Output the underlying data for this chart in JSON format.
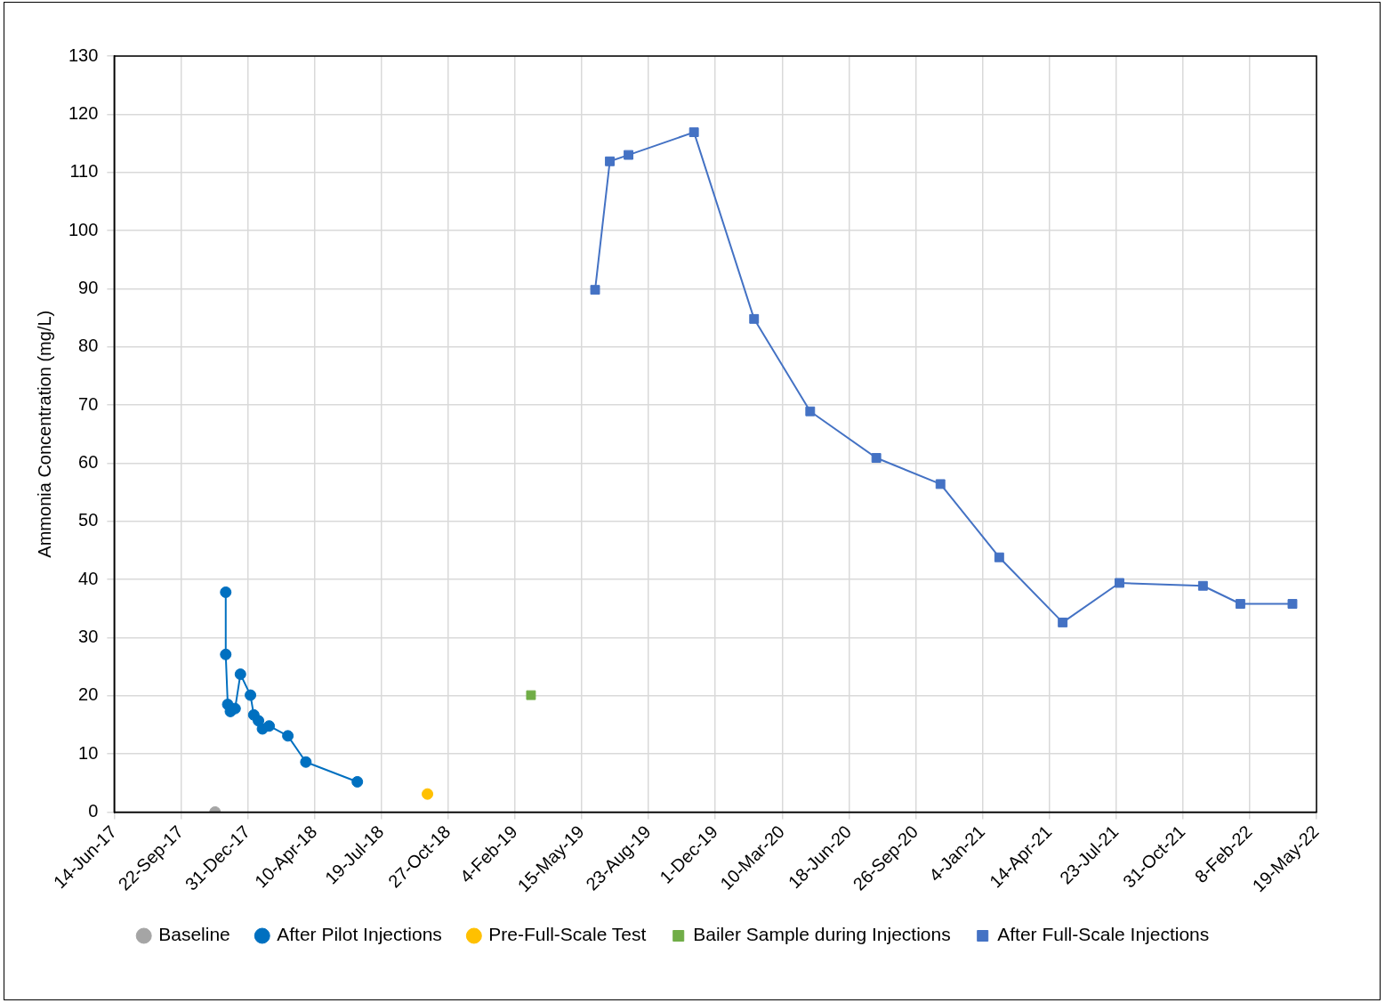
{
  "chart_data": {
    "type": "line",
    "ylabel": "Ammonia Concentration (mg/L)",
    "ylim": [
      0,
      130
    ],
    "yticks": [
      0,
      10,
      20,
      30,
      40,
      50,
      60,
      70,
      80,
      90,
      100,
      110,
      120,
      130
    ],
    "xlim": [
      "2017-06-14",
      "2022-05-19"
    ],
    "xticks": [
      {
        "value": "2017-06-14",
        "label": "14-Jun-17"
      },
      {
        "value": "2017-09-22",
        "label": "22-Sep-17"
      },
      {
        "value": "2017-12-31",
        "label": "31-Dec-17"
      },
      {
        "value": "2018-04-10",
        "label": "10-Apr-18"
      },
      {
        "value": "2018-07-19",
        "label": "19-Jul-18"
      },
      {
        "value": "2018-10-27",
        "label": "27-Oct-18"
      },
      {
        "value": "2019-02-04",
        "label": "4-Feb-19"
      },
      {
        "value": "2019-05-15",
        "label": "15-May-19"
      },
      {
        "value": "2019-08-23",
        "label": "23-Aug-19"
      },
      {
        "value": "2019-12-01",
        "label": "1-Dec-19"
      },
      {
        "value": "2020-03-10",
        "label": "10-Mar-20"
      },
      {
        "value": "2020-06-18",
        "label": "18-Jun-20"
      },
      {
        "value": "2020-09-26",
        "label": "26-Sep-20"
      },
      {
        "value": "2021-01-04",
        "label": "4-Jan-21"
      },
      {
        "value": "2021-04-14",
        "label": "14-Apr-21"
      },
      {
        "value": "2021-07-23",
        "label": "23-Jul-21"
      },
      {
        "value": "2021-10-31",
        "label": "31-Oct-21"
      },
      {
        "value": "2022-02-08",
        "label": "8-Feb-22"
      },
      {
        "value": "2022-05-19",
        "label": "19-May-22"
      }
    ],
    "grid": true,
    "legend": "bottom",
    "series": [
      {
        "name": "Baseline",
        "type": "scatter",
        "marker": "circle",
        "color": "#a5a5a5",
        "x": [
          "2017-11-12"
        ],
        "values": [
          0
        ]
      },
      {
        "name": "After Pilot Injections",
        "type": "line",
        "marker": "circle",
        "line_style": "solid",
        "color": "#0070c0",
        "x": [
          "2017-11-28",
          "2017-11-28",
          "2017-12-01",
          "2017-12-05",
          "2017-12-12",
          "2017-12-20",
          "2018-01-04",
          "2018-01-09",
          "2018-01-16",
          "2018-01-22",
          "2018-02-01",
          "2018-03-01",
          "2018-03-28",
          "2018-06-13"
        ],
        "values": [
          37.8,
          27.1,
          18.5,
          17.3,
          17.8,
          23.7,
          20.1,
          16.7,
          15.7,
          14.3,
          14.8,
          13.1,
          8.6,
          5.2
        ]
      },
      {
        "name": "Pre-Full-Scale Test",
        "type": "scatter",
        "marker": "circle",
        "color": "#ffc000",
        "x": [
          "2018-09-26"
        ],
        "values": [
          3.1
        ]
      },
      {
        "name": "Bailer Sample during Injections",
        "type": "scatter",
        "marker": "square",
        "color": "#70ad47",
        "x": [
          "2019-02-28"
        ],
        "values": [
          20.1
        ]
      },
      {
        "name": "After Full-Scale Injections",
        "type": "line",
        "marker": "square",
        "line_style": "solid",
        "color": "#4472c4",
        "x": [
          "2019-06-04",
          "2019-06-26",
          "2019-07-24",
          "2019-10-30",
          "2020-01-28",
          "2020-04-21",
          "2020-07-29",
          "2020-11-02",
          "2021-01-29",
          "2021-05-04",
          "2021-07-28",
          "2021-11-30",
          "2022-01-25",
          "2022-04-13"
        ],
        "values": [
          89.8,
          111.9,
          113.0,
          116.9,
          84.8,
          68.9,
          60.9,
          56.4,
          43.8,
          32.6,
          39.4,
          38.9,
          35.8,
          35.8
        ]
      }
    ]
  }
}
